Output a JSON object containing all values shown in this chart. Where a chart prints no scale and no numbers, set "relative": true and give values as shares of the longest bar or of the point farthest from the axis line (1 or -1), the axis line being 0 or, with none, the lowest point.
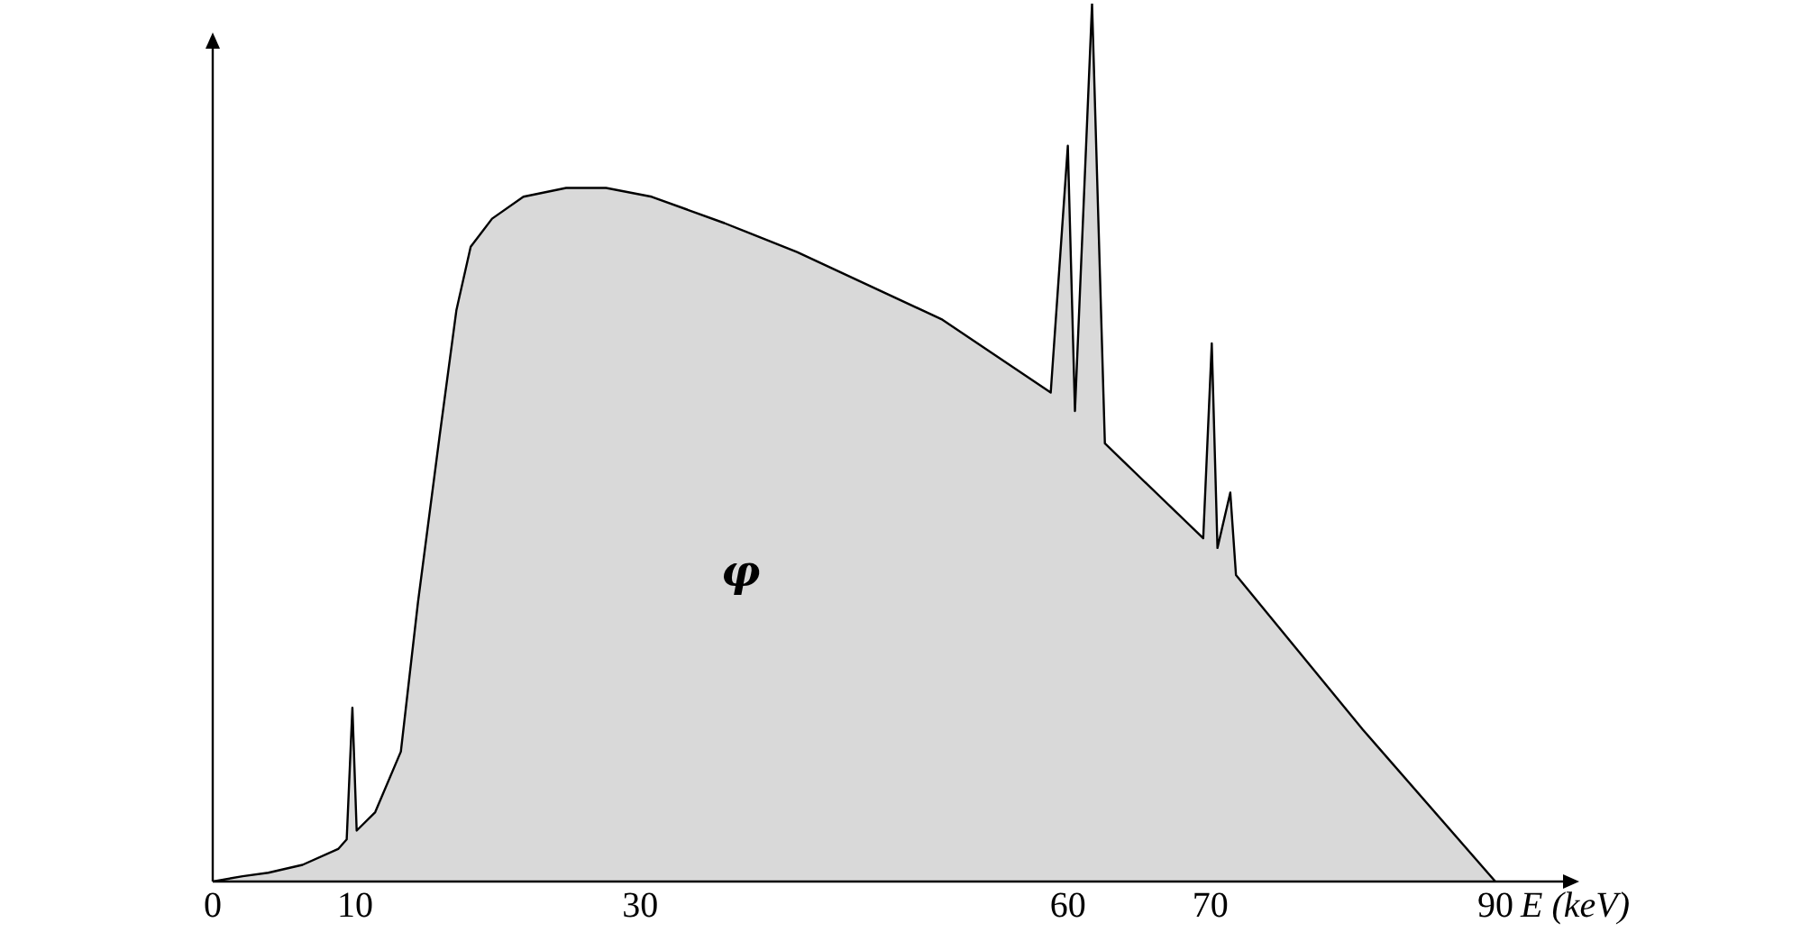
{
  "chart_data": {
    "type": "area",
    "relative": true,
    "xlabel": "E (keV)",
    "xlim": [
      0,
      95
    ],
    "xticks": [
      0,
      10,
      30,
      60,
      70,
      90
    ],
    "grid": false,
    "legend": false,
    "marker": "none",
    "line_style": "solid",
    "annotations": [
      "φ"
    ],
    "series": [
      {
        "color": "#d9d9d9",
        "x": [
          0,
          2.1,
          3.9,
          6.3,
          8.8,
          9.4,
          9.8,
          10.1,
          11.4,
          13.2,
          14.4,
          15.9,
          17.1,
          18.1,
          19.6,
          21.8,
          24.8,
          27.6,
          30.8,
          35.9,
          41.0,
          51.2,
          58.8,
          60,
          60.5,
          61.7,
          62.6,
          69.5,
          70.1,
          70.5,
          71.4,
          71.8,
          80.7,
          90
        ],
        "values": [
          0,
          0.006,
          0.01,
          0.019,
          0.037,
          0.048,
          0.198,
          0.058,
          0.079,
          0.148,
          0.318,
          0.505,
          0.651,
          0.723,
          0.755,
          0.78,
          0.79,
          0.79,
          0.78,
          0.75,
          0.717,
          0.64,
          0.557,
          0.838,
          0.536,
          1.0,
          0.499,
          0.391,
          0.613,
          0.38,
          0.443,
          0.349,
          0.173,
          0
        ]
      }
    ]
  }
}
